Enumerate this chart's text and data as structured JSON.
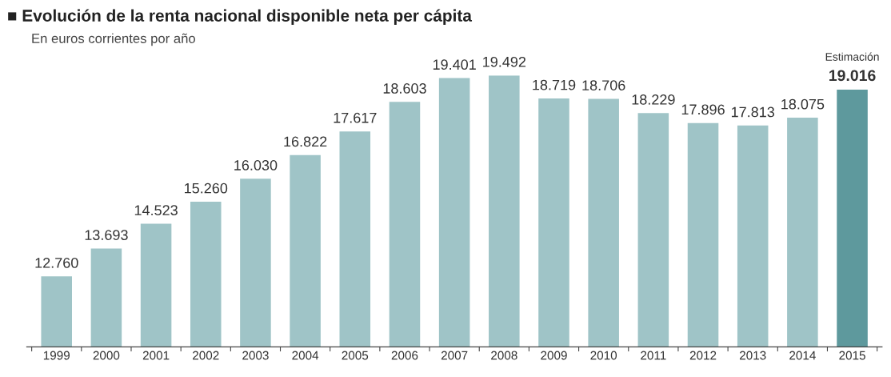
{
  "chart_data": {
    "type": "bar",
    "title": "■ Evolución de la renta nacional disponible neta per cápita",
    "subtitle": "En euros corrientes por año",
    "categories": [
      "1999",
      "2000",
      "2001",
      "2002",
      "2003",
      "2004",
      "2005",
      "2006",
      "2007",
      "2008",
      "2009",
      "2010",
      "2011",
      "2012",
      "2013",
      "2014",
      "2015"
    ],
    "values": [
      12760,
      13693,
      14523,
      15260,
      16030,
      16822,
      17617,
      18603,
      19401,
      19492,
      18719,
      18706,
      18229,
      17896,
      17813,
      18075,
      19016
    ],
    "colors": [
      "#9fc4c7",
      "#9fc4c7",
      "#9fc4c7",
      "#9fc4c7",
      "#9fc4c7",
      "#9fc4c7",
      "#9fc4c7",
      "#9fc4c7",
      "#9fc4c7",
      "#9fc4c7",
      "#9fc4c7",
      "#9fc4c7",
      "#9fc4c7",
      "#9fc4c7",
      "#9fc4c7",
      "#9fc4c7",
      "#5e999d"
    ],
    "value_labels": [
      "12.760",
      "13.693",
      "14.523",
      "15.260",
      "16.030",
      "16.822",
      "17.617",
      "18.603",
      "19.401",
      "19.492",
      "18.719",
      "18.706",
      "18.229",
      "17.896",
      "17.813",
      "18.075",
      "19.016"
    ],
    "annotations": [
      {
        "text": "Estimación",
        "x": "2015",
        "y": 19016
      }
    ],
    "ylim": [
      10400,
      19492
    ],
    "tick_labels": "x",
    "grid": false,
    "legend": false
  }
}
